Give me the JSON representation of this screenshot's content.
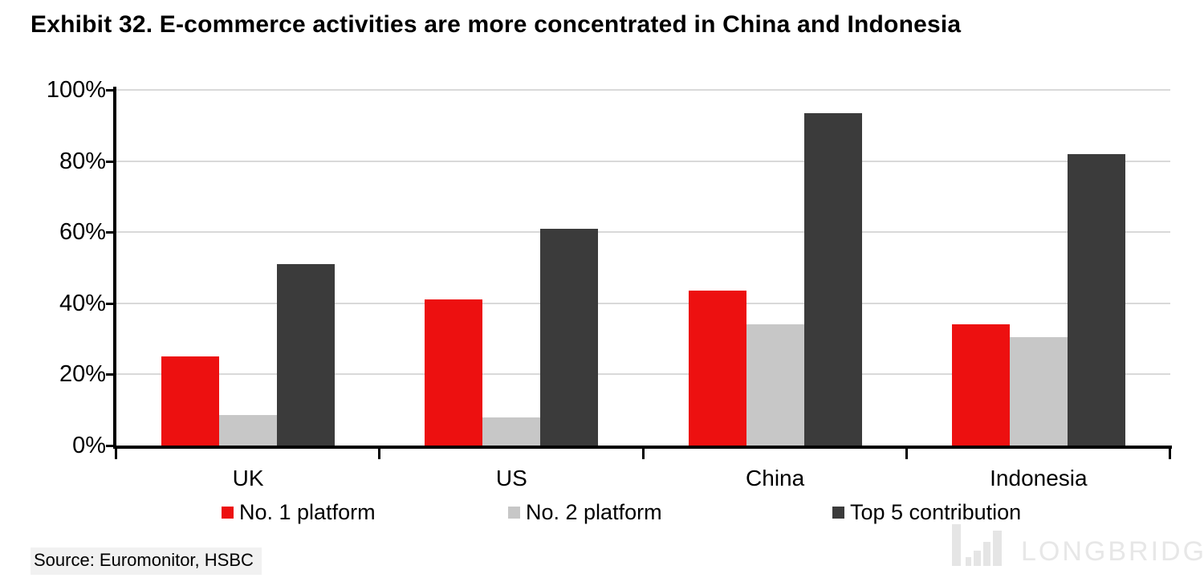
{
  "title": "Exhibit 32. E-commerce activities are more concentrated in China and Indonesia",
  "source_note": "Source: Euromonitor, HSBC",
  "watermark": "LONGBRIDGE",
  "colors": {
    "series1": "#ed1010",
    "series2": "#c7c7c7",
    "series3": "#3b3b3b",
    "gridline": "#d9d9d9",
    "axis": "#000000",
    "watermark": "#e7e7e7",
    "source_bg": "#f1f1f1"
  },
  "chart_data": {
    "type": "bar",
    "title": "Exhibit 32. E-commerce activities are more concentrated in China and Indonesia",
    "categories": [
      "UK",
      "US",
      "China",
      "Indonesia"
    ],
    "series": [
      {
        "name": "No. 1 platform",
        "color": "#ed1010",
        "values": [
          25,
          41,
          43.5,
          34
        ]
      },
      {
        "name": "No. 2 platform",
        "color": "#c7c7c7",
        "values": [
          8.5,
          8,
          34,
          30.5
        ]
      },
      {
        "name": "Top 5 contribution",
        "color": "#3b3b3b",
        "values": [
          51,
          61,
          93.5,
          82
        ]
      }
    ],
    "xlabel": "",
    "ylabel": "",
    "ylim": [
      0,
      100
    ],
    "y_ticks": [
      "0%",
      "20%",
      "40%",
      "60%",
      "80%",
      "100%"
    ],
    "y_tick_values": [
      0,
      20,
      40,
      60,
      80,
      100
    ],
    "grid": true,
    "legend_position": "bottom"
  }
}
